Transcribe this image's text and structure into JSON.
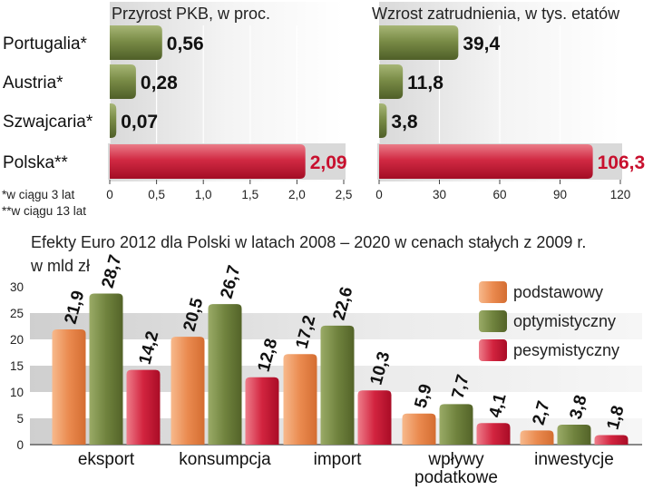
{
  "chart_data": [
    {
      "type": "bar",
      "orientation": "horizontal",
      "title": "Przyrost PKB, w proc.",
      "categories": [
        "Portugalia*",
        "Austria*",
        "Szwajcaria*",
        "Polska**"
      ],
      "values": [
        0.56,
        0.28,
        0.07,
        2.09
      ],
      "value_labels": [
        "0,56",
        "0,28",
        "0,07",
        "2,09"
      ],
      "xlim": [
        0,
        2.5
      ],
      "ticks": [
        "0",
        "0,5",
        "1,0",
        "1,5",
        "2,0",
        "2,5"
      ]
    },
    {
      "type": "bar",
      "orientation": "horizontal",
      "title": "Wzrost zatrudnienia, w tys. etatów",
      "categories": [
        "Portugalia*",
        "Austria*",
        "Szwajcaria*",
        "Polska**"
      ],
      "values": [
        39.4,
        11.8,
        3.8,
        106.3
      ],
      "value_labels": [
        "39,4",
        "11,8",
        "3,8",
        "106,3"
      ],
      "xlim": [
        0,
        120
      ],
      "ticks": [
        "0",
        "30",
        "60",
        "90",
        "120"
      ]
    },
    {
      "type": "bar",
      "orientation": "vertical",
      "title": "Efekty Euro 2012 dla Polski w latach 2008 – 2020 w cenach stałych z 2009 r.",
      "subtitle": "w mld zł",
      "categories": [
        "eksport",
        "konsumpcja",
        "import",
        "wpływy podatkowe",
        "inwestycje"
      ],
      "category_lines": [
        [
          "eksport"
        ],
        [
          "konsumpcja"
        ],
        [
          "import"
        ],
        [
          "wpływy",
          "podatkowe"
        ],
        [
          "inwestycje"
        ]
      ],
      "series": [
        {
          "name": "podstawowy",
          "values": [
            21.9,
            20.5,
            17.2,
            5.9,
            2.7
          ],
          "labels": [
            "21,9",
            "20,5",
            "17,2",
            "5,9",
            "2,7"
          ]
        },
        {
          "name": "optymistyczny",
          "values": [
            28.7,
            26.7,
            22.6,
            7.7,
            3.8
          ],
          "labels": [
            "28,7",
            "26,7",
            "22,6",
            "7,7",
            "3,8"
          ]
        },
        {
          "name": "pesymistyczny",
          "values": [
            14.2,
            12.8,
            10.3,
            4.1,
            1.8
          ],
          "labels": [
            "14,2",
            "12,8",
            "10,3",
            "4,1",
            "1,8"
          ]
        }
      ],
      "ylim": [
        0,
        30
      ],
      "yticks": [
        "0",
        "5",
        "10",
        "15",
        "20",
        "25",
        "30"
      ],
      "legend": "top-right"
    }
  ],
  "notes": [
    "*w ciągu 3 lat",
    "**w ciągu 13 lat"
  ],
  "colors": {
    "green": "#6b7d3c",
    "green_hi": "#93a45f",
    "red": "#c8102e",
    "red_hi": "#e05a6a",
    "orange": "#e8834a",
    "orange_hi": "#f6b07e",
    "band": "#e3e3e3",
    "panel": "#e8e8e8"
  }
}
